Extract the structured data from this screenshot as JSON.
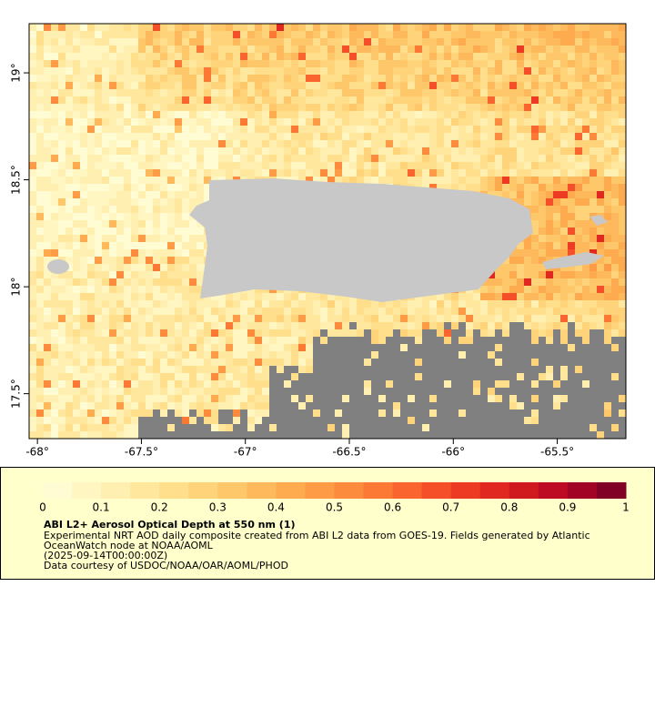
{
  "map": {
    "xlim": [
      -68.04,
      -65.17
    ],
    "ylim": [
      17.29,
      19.23
    ],
    "xticks": [
      {
        "value": -68,
        "label": "-68°"
      },
      {
        "value": -67.5,
        "label": "-67.5°"
      },
      {
        "value": -67,
        "label": "-67°"
      },
      {
        "value": -66.5,
        "label": "-66.5°"
      },
      {
        "value": -66,
        "label": "-66°"
      },
      {
        "value": -65.5,
        "label": "-65.5°"
      }
    ],
    "yticks": [
      {
        "value": 17.5,
        "label": "17.5°"
      },
      {
        "value": 18,
        "label": "18°"
      },
      {
        "value": 18.5,
        "label": "18.5°"
      },
      {
        "value": 19,
        "label": "19°"
      }
    ]
  },
  "colorbar": {
    "lim": [
      0,
      1
    ],
    "ticks": [
      0,
      0.1,
      0.2,
      0.3,
      0.4,
      0.5,
      0.6,
      0.7,
      0.8,
      0.9,
      1
    ],
    "colors": [
      "#fffcd4",
      "#fff6c2",
      "#ffefb0",
      "#ffe89e",
      "#ffde8c",
      "#fed37a",
      "#fec76a",
      "#feb95c",
      "#feab50",
      "#fd9b46",
      "#fd8b3e",
      "#fc7835",
      "#fa642e",
      "#f44f28",
      "#ec3a23",
      "#e02820",
      "#d0181f",
      "#bc0b22",
      "#a20425",
      "#800026"
    ]
  },
  "caption": {
    "title": "ABI L2+ Aerosol Optical Depth at 550 nm (1)",
    "lines": [
      "Experimental NRT AOD daily composite created from ABI L2 data from GOES-19. Fields generated by Atlantic",
      "OceanWatch node at NOAA/AOML",
      "(2025-09-14T00:00:00Z)",
      "Data courtesy of USDOC/NOAA/OAR/AOML/PHOD"
    ]
  }
}
